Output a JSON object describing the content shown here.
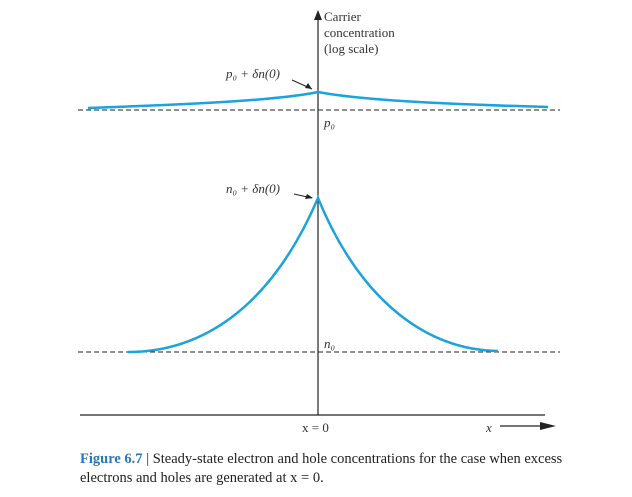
{
  "figure": {
    "y_axis_label": [
      "Carrier",
      "concentration",
      "(log scale)"
    ],
    "x_axis_label": "x",
    "origin_label": "x = 0",
    "annotations": {
      "p_peak": "p₀ + δn(0)",
      "p_baseline": "p₀",
      "n_peak": "n₀ + δn(0)",
      "n_baseline": "n₀"
    },
    "curve_color": "#1aa3dd"
  },
  "caption": {
    "figure_number": "Figure 6.7",
    "separator": " | ",
    "text": "Steady-state electron and hole concentrations for the case when excess electrons and holes are generated at x = 0."
  }
}
